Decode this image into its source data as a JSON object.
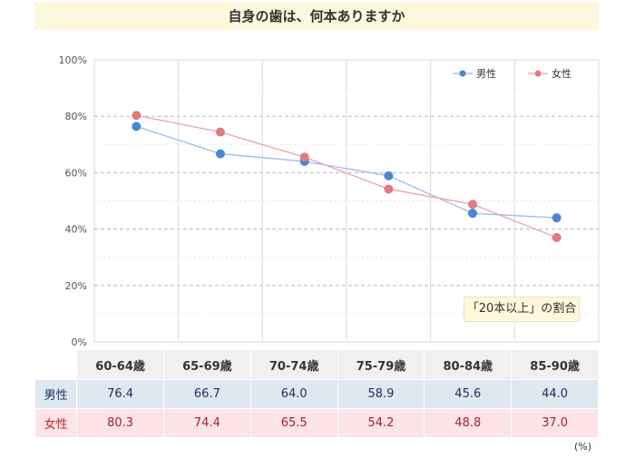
{
  "title": "自身の歯は、何本ありますか",
  "annotation": "「20本以上」の割合",
  "unit": "(%)",
  "chart_data": {
    "type": "line",
    "categories": [
      "60-64歳",
      "65-69歳",
      "70-74歳",
      "75-79歳",
      "80-84歳",
      "85-90歳"
    ],
    "series": [
      {
        "name": "男性",
        "values": [
          76.4,
          66.7,
          64.0,
          58.9,
          45.6,
          44.0
        ],
        "color": "#4a86d4",
        "line_color": "#9dbbe4"
      },
      {
        "name": "女性",
        "values": [
          80.3,
          74.4,
          65.5,
          54.2,
          48.8,
          37.0
        ],
        "color": "#e07a86",
        "line_color": "#eaa3ab"
      }
    ],
    "ylim": [
      0,
      100
    ],
    "yticks": [
      "0%",
      "20%",
      "40%",
      "60%",
      "80%",
      "100%"
    ],
    "legend": "top-right",
    "grid": true
  },
  "table": {
    "headers": [
      "60-64歳",
      "65-69歳",
      "70-74歳",
      "75-79歳",
      "80-84歳",
      "85-90歳"
    ],
    "rows": [
      {
        "label": "男性",
        "values": [
          "76.4",
          "66.7",
          "64.0",
          "58.9",
          "45.6",
          "44.0"
        ]
      },
      {
        "label": "女性",
        "values": [
          "80.3",
          "74.4",
          "65.5",
          "54.2",
          "48.8",
          "37.0"
        ]
      }
    ]
  }
}
